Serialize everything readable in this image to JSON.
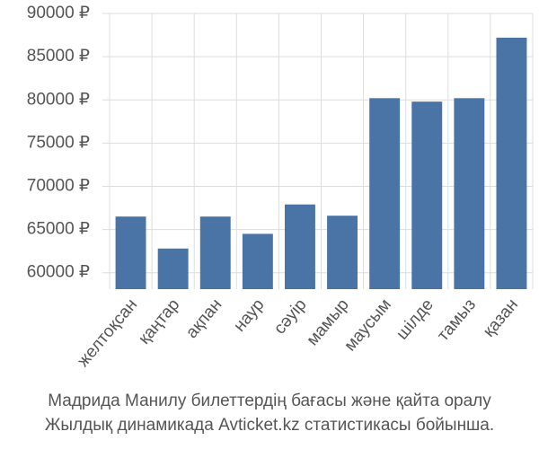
{
  "chart_data": {
    "type": "bar",
    "title": "Мадрида Манилу билеттердің бағасы және қайта оралу",
    "subtitle": "Жылдық динамикада Avticket.kz статистикасы бойынша.",
    "categories": [
      "желтоқсан",
      "қаңтар",
      "ақпан",
      "наур",
      "сәуір",
      "мамыр",
      "маусым",
      "шілде",
      "тамыз",
      "қазан"
    ],
    "values": [
      66500,
      62800,
      66500,
      64500,
      67900,
      66600,
      80200,
      79800,
      80200,
      87200
    ],
    "color": "#4a74a5",
    "ylim": [
      58100,
      90000
    ],
    "yticks": [
      {
        "value": 60000,
        "label": "60000 ₽"
      },
      {
        "value": 65000,
        "label": "65000 ₽"
      },
      {
        "value": 70000,
        "label": "70000 ₽"
      },
      {
        "value": 75000,
        "label": "75000 ₽"
      },
      {
        "value": 80000,
        "label": "80000 ₽"
      },
      {
        "value": 85000,
        "label": "85000 ₽"
      },
      {
        "value": 90000,
        "label": "90000 ₽"
      }
    ],
    "grid": true
  }
}
